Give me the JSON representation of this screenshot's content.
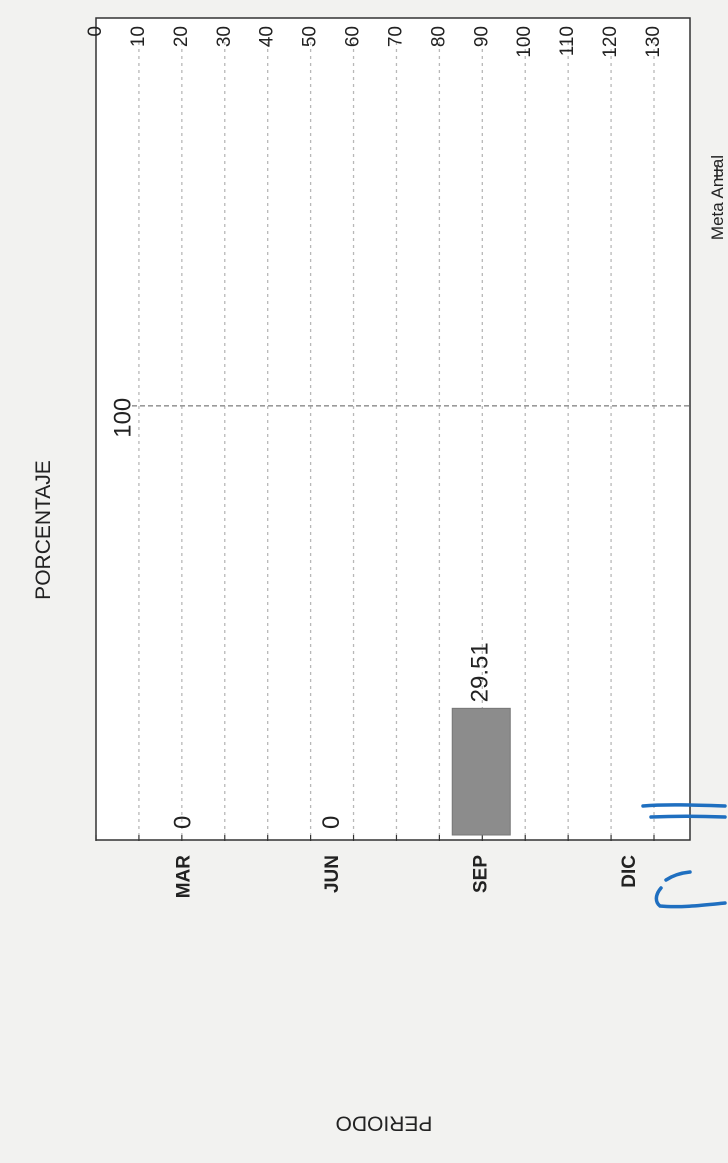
{
  "chart_data": {
    "type": "bar",
    "orientation": "rotated-90",
    "ylabel": "PORCENTAJE",
    "xlabel": "PERIODO",
    "categories": [
      "MAR",
      "JUN",
      "SEP",
      "DIC"
    ],
    "series": [
      {
        "values": [
          0,
          0,
          29.51,
          null
        ],
        "data_labels": [
          "0",
          "0",
          "29.51",
          ""
        ]
      }
    ],
    "reference_line": {
      "name": "Meta Anual",
      "value": 100,
      "label": "100"
    },
    "ylim": [
      0,
      130
    ],
    "yticks": [
      0,
      10,
      20,
      30,
      40,
      50,
      60,
      70,
      80,
      90,
      100,
      110,
      120,
      130
    ],
    "grid": true,
    "legend": "bottom-right",
    "colors": {
      "bar": "#8c8c8c",
      "grid": "#b8b8b8",
      "meta_line": "#9a9a9a",
      "axis": "#333333",
      "ink": "#1f6fc0"
    }
  }
}
